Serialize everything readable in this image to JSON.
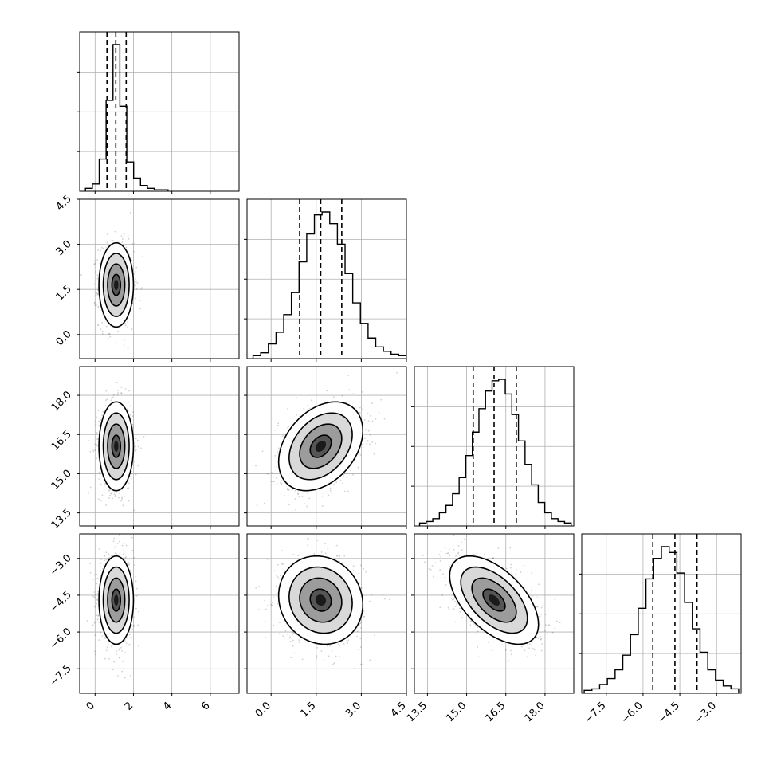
{
  "chart_data": {
    "type": "corner",
    "title": "",
    "grid": true,
    "parameters": [
      {
        "name": "",
        "range": [
          -0.8,
          7.5
        ],
        "ticks": [
          0,
          2,
          4,
          6
        ],
        "tick_labels": [
          "0",
          "2",
          "4",
          "6"
        ],
        "quantiles": [
          0.62,
          1.08,
          1.62
        ],
        "mean": 1.1,
        "sd": 0.45
      },
      {
        "name": "",
        "range": [
          -0.8,
          4.5
        ],
        "ticks": [
          0.0,
          1.5,
          3.0,
          4.5
        ],
        "tick_labels": [
          "0.0",
          "1.5",
          "3.0",
          "4.5"
        ],
        "quantiles": [
          0.95,
          1.65,
          2.35
        ],
        "mean": 1.65,
        "sd": 0.7
      },
      {
        "name": "",
        "range": [
          13.0,
          19.1
        ],
        "ticks": [
          13.5,
          15.0,
          16.5,
          18.0
        ],
        "tick_labels": [
          "13.5",
          "15.0",
          "16.5",
          "18.0"
        ],
        "quantiles": [
          15.25,
          16.05,
          16.9
        ],
        "mean": 16.05,
        "sd": 0.85
      },
      {
        "name": "",
        "range": [
          -8.5,
          -2.0
        ],
        "ticks": [
          -7.5,
          -6.0,
          -4.5,
          -3.0
        ],
        "tick_labels": [
          "−7.5",
          "−6.0",
          "−4.5",
          "−3.0"
        ],
        "quantiles": [
          -5.6,
          -4.7,
          -3.8
        ],
        "mean": -4.7,
        "sd": 0.9
      }
    ],
    "correlations": [
      [
        1,
        0.0,
        0.0,
        0.0
      ],
      [
        0.0,
        1,
        0.35,
        -0.1
      ],
      [
        0.0,
        0.35,
        1,
        -0.55
      ],
      [
        0.0,
        -0.1,
        -0.55,
        1
      ]
    ],
    "histograms": [
      {
        "bins": [
          -0.5,
          3.8
        ],
        "counts": [
          2,
          5,
          22,
          62,
          100,
          58,
          20,
          9,
          4,
          2,
          1,
          1
        ]
      },
      {
        "bins": [
          -0.6,
          4.5
        ],
        "counts": [
          2,
          4,
          10,
          18,
          30,
          45,
          66,
          85,
          98,
          100,
          92,
          78,
          58,
          38,
          24,
          14,
          8,
          5,
          3,
          2
        ]
      },
      {
        "bins": [
          13.2,
          19.0
        ],
        "counts": [
          2,
          3,
          5,
          9,
          14,
          22,
          33,
          48,
          64,
          80,
          92,
          99,
          100,
          90,
          76,
          58,
          42,
          28,
          16,
          9,
          5,
          3,
          2
        ]
      },
      {
        "bins": [
          -8.4,
          -2.1
        ],
        "counts": [
          2,
          3,
          6,
          10,
          16,
          26,
          40,
          58,
          78,
          92,
          100,
          96,
          82,
          62,
          44,
          28,
          16,
          9,
          5,
          3
        ]
      }
    ],
    "contour_levels_sigma": [
      0.5,
      1.0,
      1.5,
      2.0
    ]
  }
}
